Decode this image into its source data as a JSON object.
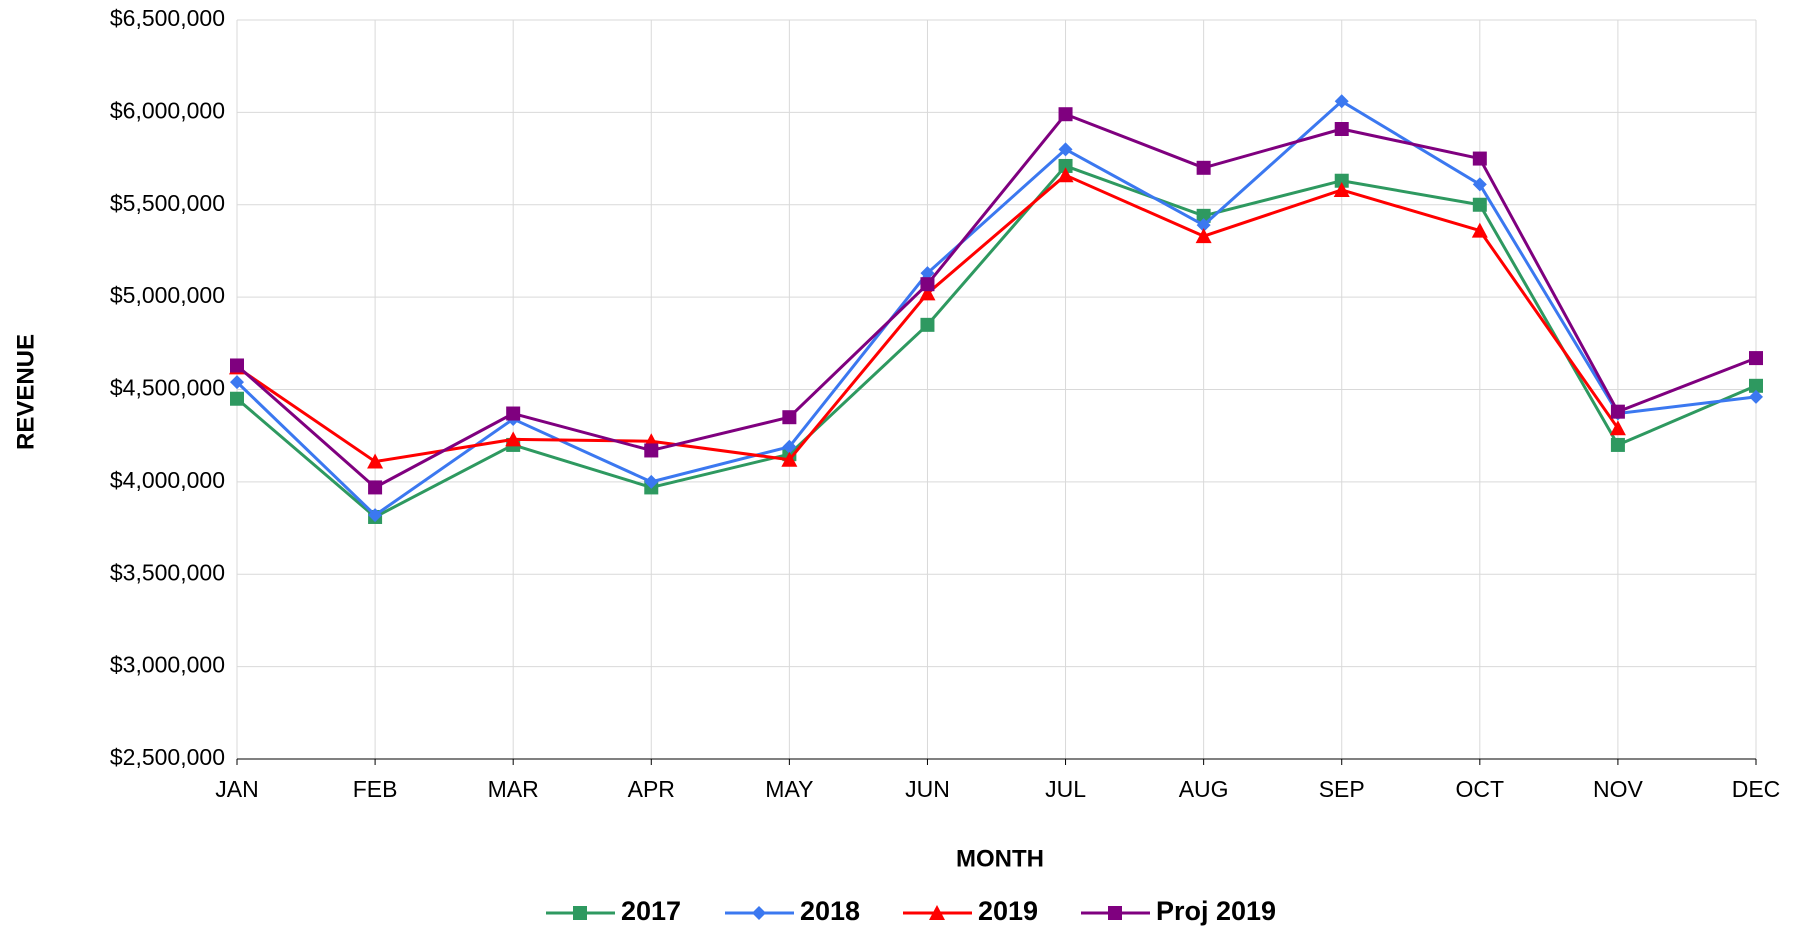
{
  "chart_data": {
    "type": "line",
    "x_label": "MONTH",
    "y_label": "REVENUE",
    "categories": [
      "JAN",
      "FEB",
      "MAR",
      "APR",
      "MAY",
      "JUN",
      "JUL",
      "AUG",
      "SEP",
      "OCT",
      "NOV",
      "DEC"
    ],
    "series": [
      {
        "name": "2017",
        "color": "#2e9960",
        "marker": "square",
        "values": [
          4450000,
          3810000,
          4200000,
          3970000,
          4150000,
          4850000,
          5710000,
          5440000,
          5630000,
          5500000,
          4200000,
          4520000
        ]
      },
      {
        "name": "2018",
        "color": "#3b78f0",
        "marker": "diamond",
        "values": [
          4540000,
          3820000,
          4340000,
          4000000,
          4190000,
          5130000,
          5800000,
          5390000,
          6060000,
          5610000,
          4370000,
          4460000
        ]
      },
      {
        "name": "2019",
        "color": "#ff0000",
        "marker": "triangle",
        "values": [
          4620000,
          4110000,
          4230000,
          4220000,
          4120000,
          5020000,
          5660000,
          5330000,
          5580000,
          5360000,
          4290000,
          null
        ]
      },
      {
        "name": "Proj 2019",
        "color": "#7f007f",
        "marker": "square",
        "values": [
          4630000,
          3970000,
          4370000,
          4170000,
          4350000,
          5070000,
          5990000,
          5700000,
          5910000,
          5750000,
          4380000,
          4670000
        ]
      }
    ],
    "ylim": [
      2500000,
      6500000
    ],
    "yticks": [
      {
        "value": 2500000,
        "label": "$2,500,000"
      },
      {
        "value": 3000000,
        "label": "$3,000,000"
      },
      {
        "value": 3500000,
        "label": "$3,500,000"
      },
      {
        "value": 4000000,
        "label": "$4,000,000"
      },
      {
        "value": 4500000,
        "label": "$4,500,000"
      },
      {
        "value": 5000000,
        "label": "$5,000,000"
      },
      {
        "value": 5500000,
        "label": "$5,500,000"
      },
      {
        "value": 6000000,
        "label": "$6,000,000"
      },
      {
        "value": 6500000,
        "label": "$6,500,000"
      }
    ],
    "grid": true,
    "legend": "bottom"
  }
}
